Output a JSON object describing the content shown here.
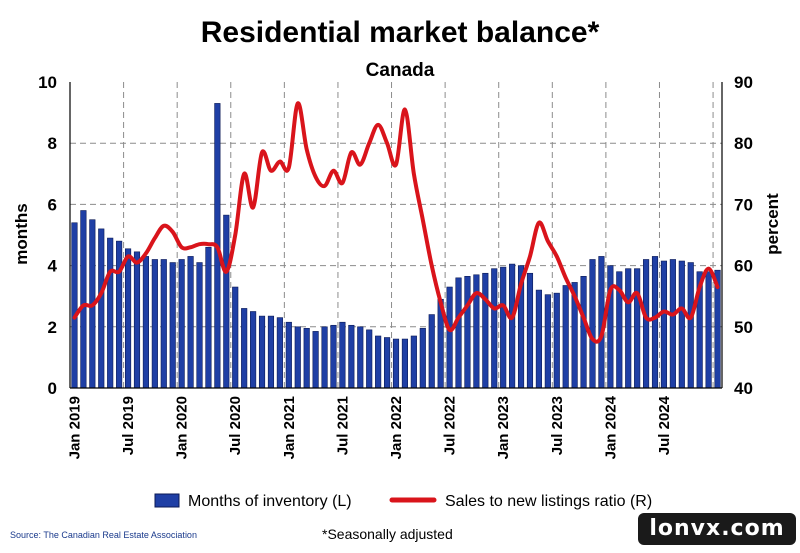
{
  "chart_data": {
    "type": "bar+line",
    "title": "Residential market balance*",
    "subtitle": "Canada",
    "ylabel_left": "months",
    "ylabel_right": "percent",
    "ylim_left": [
      0,
      10
    ],
    "ylim_right": [
      40,
      90
    ],
    "yticks_left": [
      "0",
      "2",
      "4",
      "6",
      "8",
      "10"
    ],
    "yticks_right": [
      "40",
      "50",
      "60",
      "70",
      "80",
      "90"
    ],
    "x_tick_labels": [
      "Jan 2019",
      "Jul 2019",
      "Jan 2020",
      "Jul 2020",
      "Jan 2021",
      "Jul 2021",
      "Jan 2022",
      "Jul 2022",
      "Jan 2023",
      "Jul 2023",
      "Jan 2024",
      "Jul 2024"
    ],
    "grid": true,
    "legend_position": "bottom",
    "colors": {
      "bars": "#1f3fa5",
      "line": "#d9141b"
    },
    "series": [
      {
        "name": "Months of inventory (L)",
        "axis": "left",
        "type": "bar",
        "values": [
          5.4,
          5.8,
          5.5,
          5.2,
          4.9,
          4.8,
          4.55,
          4.45,
          4.3,
          4.2,
          4.2,
          4.1,
          4.2,
          4.3,
          4.1,
          4.6,
          9.3,
          5.65,
          3.3,
          2.6,
          2.5,
          2.35,
          2.35,
          2.3,
          2.15,
          2.0,
          1.95,
          1.85,
          2.0,
          2.05,
          2.15,
          2.05,
          2.0,
          1.9,
          1.7,
          1.65,
          1.6,
          1.6,
          1.7,
          1.95,
          2.4,
          2.9,
          3.3,
          3.6,
          3.65,
          3.7,
          3.75,
          3.9,
          3.95,
          4.05,
          4.0,
          3.75,
          3.2,
          3.05,
          3.1,
          3.35,
          3.45,
          3.65,
          4.2,
          4.3,
          4.0,
          3.8,
          3.9,
          3.9,
          4.2,
          4.3,
          4.15,
          4.2,
          4.15,
          4.1,
          3.8,
          3.8,
          3.85
        ]
      },
      {
        "name": "Sales to new listings ratio (R)",
        "axis": "right",
        "type": "line",
        "values": [
          51.5,
          53.5,
          53.5,
          55.5,
          59.0,
          59.0,
          61.5,
          60.5,
          62.0,
          64.5,
          66.5,
          65.5,
          63.0,
          63.0,
          63.5,
          63.5,
          63.0,
          59.0,
          65.0,
          75.0,
          69.5,
          78.5,
          75.5,
          77.0,
          76.0,
          86.5,
          79.0,
          74.5,
          73.0,
          75.5,
          73.5,
          78.5,
          76.5,
          80.0,
          83.0,
          80.0,
          76.5,
          85.5,
          75.0,
          67.5,
          60.0,
          54.0,
          49.5,
          51.5,
          53.5,
          55.5,
          54.5,
          53.0,
          53.5,
          51.5,
          57.0,
          61.5,
          67.0,
          64.0,
          61.5,
          58.0,
          55.0,
          51.5,
          48.0,
          48.5,
          56.0,
          56.0,
          54.0,
          55.5,
          51.5,
          51.5,
          52.5,
          52.0,
          53.0,
          51.5,
          56.5,
          59.5,
          56.5
        ]
      }
    ],
    "annotations": [
      "*Seasonally adjusted"
    ]
  },
  "source_note": "Source: The Canadian Real Estate Association",
  "footnote": "*Seasonally adjusted",
  "watermark_text": "lonvx.com"
}
